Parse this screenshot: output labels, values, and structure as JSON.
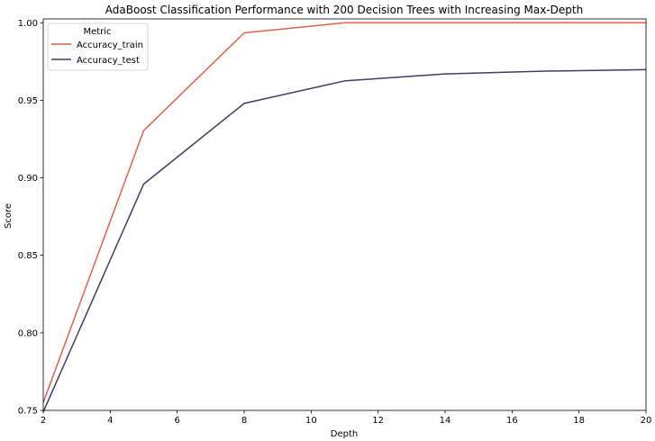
{
  "chart_data": {
    "type": "line",
    "title": "AdaBoost Classification Performance with 200 Decision Trees with Increasing Max-Depth",
    "xlabel": "Depth",
    "ylabel": "Score",
    "xlim": [
      2,
      20
    ],
    "ylim": [
      0.75,
      1.0025
    ],
    "x_ticks": [
      2,
      4,
      6,
      8,
      10,
      12,
      14,
      16,
      18,
      20
    ],
    "y_ticks": [
      0.75,
      0.8,
      0.85,
      0.9,
      0.95,
      1.0
    ],
    "y_tick_labels": [
      "0.75",
      "0.80",
      "0.85",
      "0.90",
      "0.95",
      "1.00"
    ],
    "grid": false,
    "legend": {
      "title": "Metric",
      "placement": "top-left"
    },
    "series": [
      {
        "name": "Accuracy_train",
        "color": "#e2614a",
        "x": [
          2,
          5,
          8,
          11,
          14,
          17,
          20
        ],
        "y": [
          0.755,
          0.9305,
          0.9935,
          1.0,
          1.0,
          1.0,
          1.0
        ]
      },
      {
        "name": "Accuracy_test",
        "color": "#3d3f63",
        "x": [
          2,
          5,
          8,
          11,
          14,
          17,
          20
        ],
        "y": [
          0.749,
          0.896,
          0.948,
          0.9625,
          0.967,
          0.9688,
          0.9698
        ]
      }
    ]
  }
}
